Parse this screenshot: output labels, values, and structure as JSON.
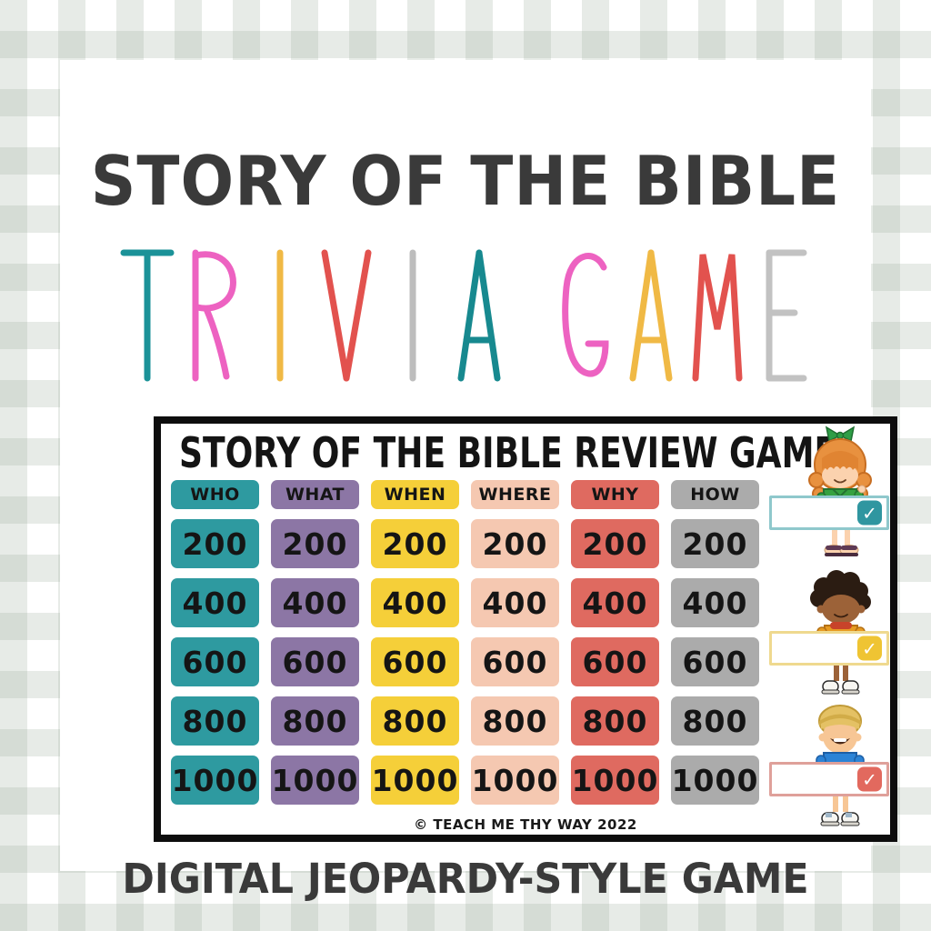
{
  "poster": {
    "main_title": "STORY OF THE BIBLE",
    "trivia_word": "TRIVIA GAME",
    "trivia_letters": [
      {
        "ch": "T",
        "color": "#1B9298"
      },
      {
        "ch": "R",
        "color": "#ED62C1"
      },
      {
        "ch": "I",
        "color": "#F0B945"
      },
      {
        "ch": "V",
        "color": "#E2524E"
      },
      {
        "ch": "I",
        "color": "#BDBDBD"
      },
      {
        "ch": "A",
        "color": "#17898F"
      },
      {
        "ch": " ",
        "color": ""
      },
      {
        "ch": "G",
        "color": "#ED62C1"
      },
      {
        "ch": "A",
        "color": "#F0B945"
      },
      {
        "ch": "M",
        "color": "#E2524E"
      },
      {
        "ch": "E",
        "color": "#C2C2C2"
      }
    ],
    "caption": "DIGITAL JEOPARDY-STYLE GAME"
  },
  "board": {
    "title": "STORY OF THE BIBLE REVIEW GAME",
    "copyright": "© TEACH ME THY WAY 2022",
    "columns": [
      {
        "label": "WHO",
        "color": "#2E9AA0"
      },
      {
        "label": "WHAT",
        "color": "#8C76A5"
      },
      {
        "label": "WHEN",
        "color": "#F5CF39"
      },
      {
        "label": "WHERE",
        "color": "#F5C8B1"
      },
      {
        "label": "WHY",
        "color": "#DF6A60"
      },
      {
        "label": "HOW",
        "color": "#ABABAB"
      }
    ],
    "values": [
      "200",
      "400",
      "600",
      "800",
      "1000"
    ],
    "players": [
      {
        "id": "girl-red-hair",
        "box_border": "#8FC8CC",
        "check_bg": "#2F96A0",
        "check": "✓"
      },
      {
        "id": "boy-dark-hair",
        "box_border": "#EFD98F",
        "check_bg": "#EFC433",
        "check": "✓"
      },
      {
        "id": "boy-blonde-hair",
        "box_border": "#DFA09A",
        "check_bg": "#E2695E",
        "check": "✓"
      }
    ]
  }
}
